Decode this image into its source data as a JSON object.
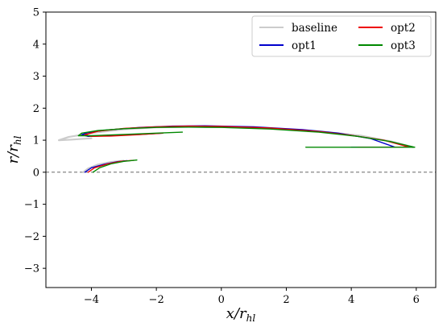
{
  "chart_data": {
    "type": "line",
    "title": "",
    "xlabel": "x/r_hl",
    "ylabel": "r/r_hl",
    "xlabel_parts": {
      "main": "x/r",
      "sub": "hl"
    },
    "ylabel_parts": {
      "main": "r/r",
      "sub": "hl"
    },
    "xlim": [
      -5.4,
      6.6
    ],
    "ylim": [
      -3.6,
      5.0
    ],
    "xticks": [
      -4,
      -2,
      0,
      2,
      4,
      6
    ],
    "yticks": [
      -3,
      -2,
      -1,
      0,
      1,
      2,
      3,
      4,
      5
    ],
    "xtick_labels": [
      "−4",
      "−2",
      "0",
      "2",
      "4",
      "6"
    ],
    "ytick_labels": [
      "−3",
      "−2",
      "−1",
      "0",
      "1",
      "2",
      "3",
      "4",
      "5"
    ],
    "grid": false,
    "legend_position": "top-right",
    "reference_line": {
      "y": 0,
      "style": "dashed",
      "color": "#555555"
    },
    "series": [
      {
        "name": "baseline",
        "color": "#cccccc",
        "segments": [
          {
            "x": [
              5.9,
              5.2,
              4.3,
              3.0,
              1.5,
              0.0,
              -1.0,
              -2.0,
              -3.0,
              -4.0,
              -4.7,
              -5.0,
              -4.6,
              -4.0
            ],
            "y": [
              0.78,
              0.97,
              1.14,
              1.28,
              1.37,
              1.41,
              1.42,
              1.4,
              1.34,
              1.22,
              1.1,
              1.0,
              1.02,
              1.06
            ]
          },
          {
            "x": [
              -4.25,
              -4.1,
              -3.8,
              -3.4,
              -3.0
            ],
            "y": [
              0.0,
              0.12,
              0.24,
              0.32,
              0.36
            ]
          }
        ]
      },
      {
        "name": "opt1",
        "color": "#0000cc",
        "segments": [
          {
            "x": [
              5.35,
              4.6,
              3.6,
              2.5,
              1.0,
              -0.5,
              -1.5,
              -2.5,
              -3.5,
              -4.1,
              -4.3,
              -4.1,
              -3.5,
              -2.5,
              -1.8
            ],
            "y": [
              0.78,
              1.05,
              1.22,
              1.33,
              1.42,
              1.45,
              1.44,
              1.4,
              1.32,
              1.24,
              1.17,
              1.12,
              1.14,
              1.18,
              1.22
            ]
          },
          {
            "x": [
              4.0,
              5.35
            ],
            "y": [
              0.78,
              0.78
            ]
          },
          {
            "x": [
              -4.2,
              -4.0,
              -3.6,
              -3.2,
              -2.9
            ],
            "y": [
              0.0,
              0.14,
              0.25,
              0.33,
              0.36
            ]
          }
        ]
      },
      {
        "name": "opt2",
        "color": "#ee0000",
        "segments": [
          {
            "x": [
              5.8,
              5.0,
              4.0,
              3.0,
              1.5,
              0.0,
              -1.0,
              -2.0,
              -3.0,
              -3.8,
              -4.2,
              -4.0,
              -3.4,
              -2.6,
              -1.8
            ],
            "y": [
              0.78,
              1.0,
              1.15,
              1.27,
              1.38,
              1.43,
              1.44,
              1.42,
              1.37,
              1.28,
              1.17,
              1.12,
              1.13,
              1.17,
              1.22
            ]
          },
          {
            "x": [
              4.2,
              5.8
            ],
            "y": [
              0.78,
              0.78
            ]
          },
          {
            "x": [
              -4.1,
              -3.9,
              -3.5,
              -3.1,
              -2.7
            ],
            "y": [
              0.0,
              0.14,
              0.26,
              0.34,
              0.37
            ]
          }
        ]
      },
      {
        "name": "opt3",
        "color": "#008800",
        "segments": [
          {
            "x": [
              5.95,
              5.2,
              4.2,
              3.0,
              1.5,
              0.0,
              -1.0,
              -2.0,
              -3.0,
              -3.8,
              -4.3,
              -4.4,
              -4.0,
              -3.0,
              -2.0,
              -1.2
            ],
            "y": [
              0.78,
              0.96,
              1.12,
              1.25,
              1.35,
              1.4,
              1.41,
              1.4,
              1.36,
              1.3,
              1.22,
              1.14,
              1.14,
              1.18,
              1.22,
              1.25
            ]
          },
          {
            "x": [
              2.6,
              5.95
            ],
            "y": [
              0.78,
              0.78
            ]
          },
          {
            "x": [
              -3.95,
              -3.75,
              -3.4,
              -3.0,
              -2.6
            ],
            "y": [
              0.0,
              0.14,
              0.26,
              0.34,
              0.38
            ]
          }
        ]
      }
    ]
  }
}
